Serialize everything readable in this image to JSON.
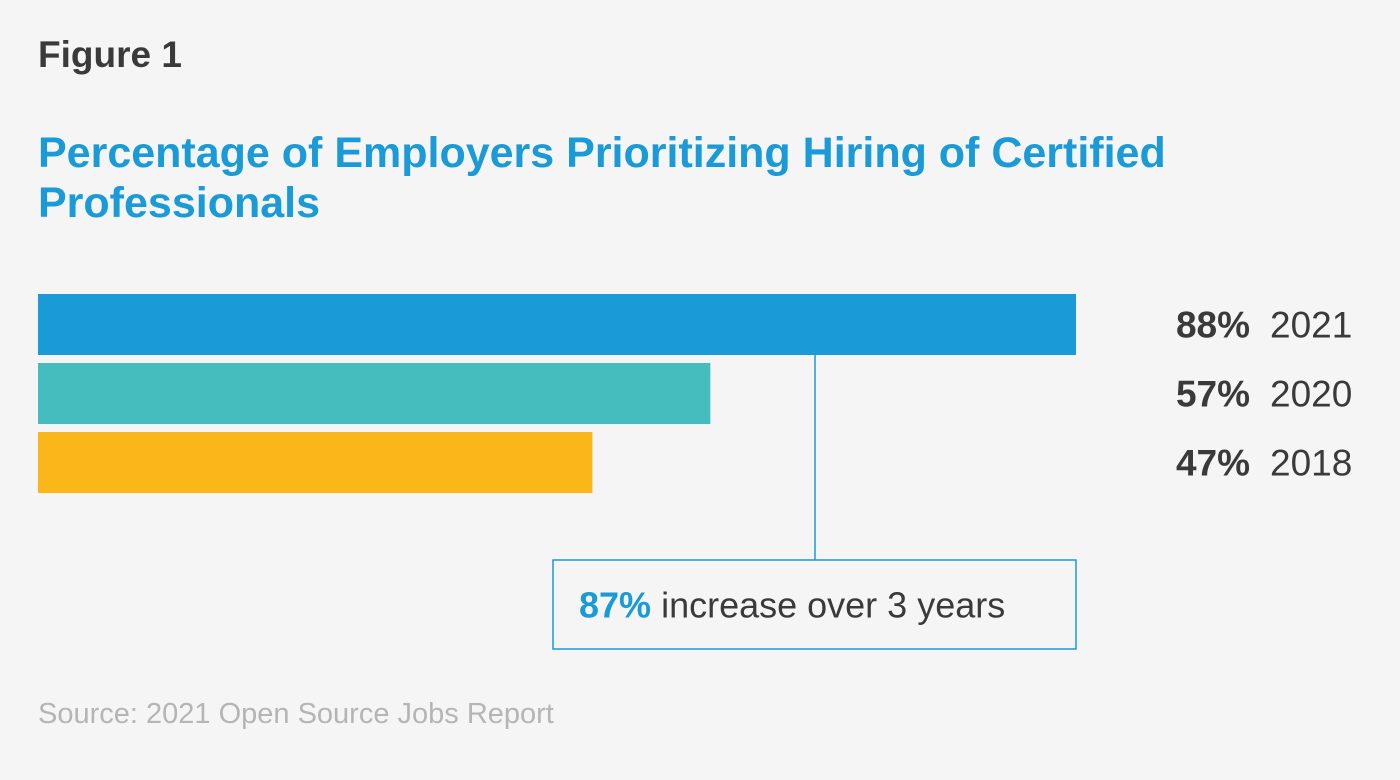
{
  "figure_label": "Figure 1",
  "source": "Source: 2021 Open Source Jobs Report",
  "chart_data": {
    "type": "bar",
    "orientation": "horizontal",
    "title": "Percentage of Employers Prioritizing Hiring of Certified Professionals",
    "categories": [
      "2021",
      "2020",
      "2018"
    ],
    "values": [
      88,
      57,
      47
    ],
    "value_labels": [
      "88%",
      "57%",
      "47%"
    ],
    "colors": [
      "#1a9ad6",
      "#45bdbe",
      "#fbb61a"
    ],
    "xlim": [
      0,
      88
    ],
    "grid": false,
    "legend": "right",
    "annotation": {
      "highlight": "87%",
      "text": "increase over 3 years",
      "color": "#1a9ad6"
    }
  }
}
